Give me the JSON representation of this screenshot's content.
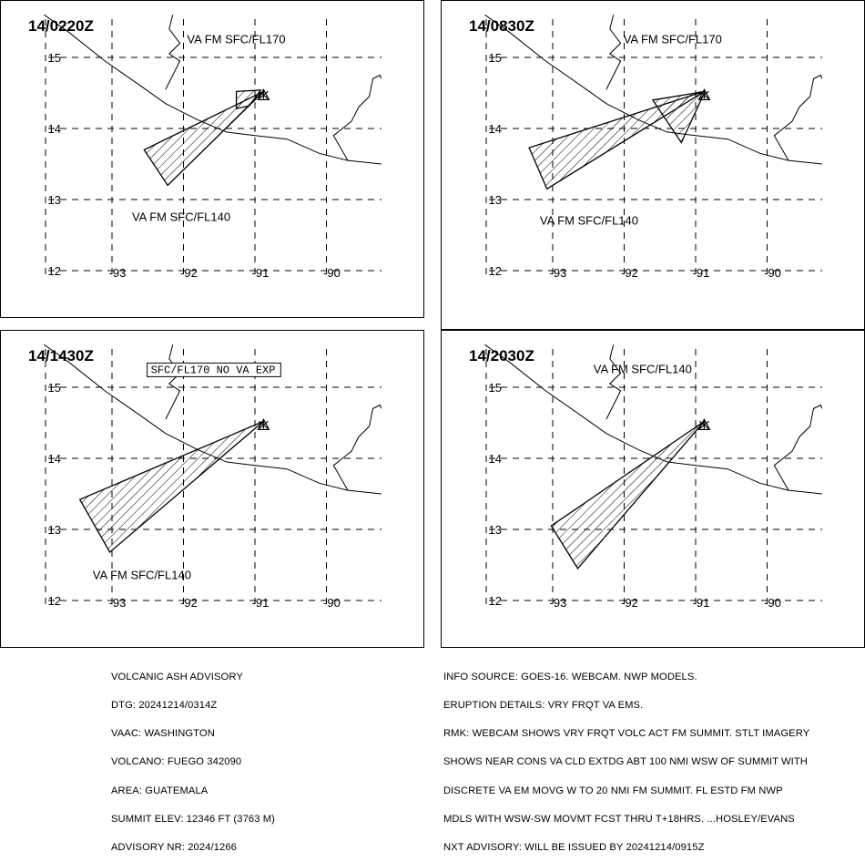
{
  "panels": [
    {
      "time": "14/0220Z",
      "labels": [
        {
          "text": "VA FM SFC/FL170",
          "lon": -91.95,
          "lat": 15.2
        },
        {
          "text": "VA FM SFC/FL140",
          "lon": -92.72,
          "lat": 12.7
        }
      ],
      "boxed_label": null,
      "polygons": [
        [
          [
            -92.55,
            13.7
          ],
          [
            -92.22,
            13.2
          ],
          [
            -90.88,
            14.52
          ],
          [
            -92.55,
            13.7
          ]
        ],
        [
          [
            -91.26,
            14.52
          ],
          [
            -90.92,
            14.54
          ],
          [
            -91.08,
            14.32
          ],
          [
            -91.26,
            14.28
          ],
          [
            -91.26,
            14.52
          ]
        ]
      ]
    },
    {
      "time": "14/0830Z",
      "labels": [
        {
          "text": "VA FM SFC/FL170",
          "lon": -92.01,
          "lat": 15.2
        },
        {
          "text": "VA FM SFC/FL140",
          "lon": -93.18,
          "lat": 12.65
        }
      ],
      "boxed_label": null,
      "polygons": [
        [
          [
            -93.33,
            13.73
          ],
          [
            -93.08,
            13.15
          ],
          [
            -90.88,
            14.52
          ],
          [
            -93.33,
            13.73
          ]
        ],
        [
          [
            -91.6,
            14.4
          ],
          [
            -90.87,
            14.52
          ],
          [
            -91.2,
            13.8
          ],
          [
            -91.6,
            14.4
          ]
        ]
      ]
    },
    {
      "time": "14/1430Z",
      "labels": [
        {
          "text": "VA FM SFC/FL140",
          "lon": -93.27,
          "lat": 12.3
        }
      ],
      "boxed_label": {
        "text": "SFC/FL170 NO VA EXP",
        "lon": -92.47,
        "lat": 15.2
      },
      "polygons": [
        [
          [
            -93.45,
            13.42
          ],
          [
            -93.03,
            12.68
          ],
          [
            -90.88,
            14.52
          ],
          [
            -93.45,
            13.42
          ]
        ]
      ]
    },
    {
      "time": "14/2030Z",
      "labels": [
        {
          "text": "VA FM SFC/FL140",
          "lon": -92.43,
          "lat": 15.2
        }
      ],
      "boxed_label": null,
      "polygons": [
        [
          [
            -93.02,
            13.05
          ],
          [
            -92.65,
            12.45
          ],
          [
            -90.88,
            14.52
          ],
          [
            -93.02,
            13.05
          ]
        ]
      ]
    }
  ],
  "map": {
    "lat_ticks": [
      "15",
      "14",
      "13",
      "12"
    ],
    "lon_ticks": [
      "-93",
      "-92",
      "-91",
      "-90"
    ],
    "coastline": [
      [
        -93.95,
        15.6
      ],
      [
        -93.6,
        15.35
      ],
      [
        -93.1,
        14.95
      ],
      [
        -92.6,
        14.6
      ],
      [
        -92.25,
        14.35
      ],
      [
        -91.8,
        14.12
      ],
      [
        -91.4,
        13.95
      ],
      [
        -91.0,
        13.9
      ],
      [
        -90.55,
        13.85
      ],
      [
        -90.1,
        13.65
      ],
      [
        -89.7,
        13.55
      ],
      [
        -89.23,
        13.5
      ]
    ],
    "border_west": [
      [
        -92.15,
        15.6
      ],
      [
        -92.2,
        15.4
      ],
      [
        -92.05,
        15.2
      ],
      [
        -92.2,
        15.05
      ],
      [
        -92.05,
        14.95
      ],
      [
        -92.25,
        14.55
      ]
    ],
    "border_east": [
      [
        -89.7,
        13.55
      ],
      [
        -89.9,
        13.9
      ],
      [
        -89.65,
        14.1
      ],
      [
        -89.55,
        14.3
      ],
      [
        -89.4,
        14.45
      ],
      [
        -89.35,
        14.7
      ],
      [
        -89.25,
        14.75
      ],
      [
        -89.23,
        14.7
      ]
    ]
  },
  "footer_left": [
    "VOLCANIC ASH ADVISORY",
    "DTG: 20241214/0314Z",
    "VAAC: WASHINGTON",
    "VOLCANO: FUEGO 342090",
    "AREA: GUATEMALA",
    "SUMMIT ELEV: 12346 FT (3763 M)",
    "ADVISORY NR: 2024/1266"
  ],
  "footer_right": [
    "INFO SOURCE: GOES-16. WEBCAM. NWP MODELS.",
    "ERUPTION DETAILS: VRY FRQT VA EMS.",
    "RMK: WEBCAM SHOWS VRY FRQT VOLC ACT FM SUMMIT. STLT IMAGERY",
    "SHOWS NEAR CONS VA CLD EXTDG ABT 100 NMI WSW OF SUMMIT WITH",
    "DISCRETE VA EM MOVG W TO 20 NMI FM SUMMIT. FL ESTD FM NWP",
    "MDLS WITH WSW-SW MOVMT FCST THRU T+18HRS. ...HOSLEY/EVANS",
    "NXT ADVISORY: WILL BE ISSUED BY 20241214/0915Z"
  ]
}
